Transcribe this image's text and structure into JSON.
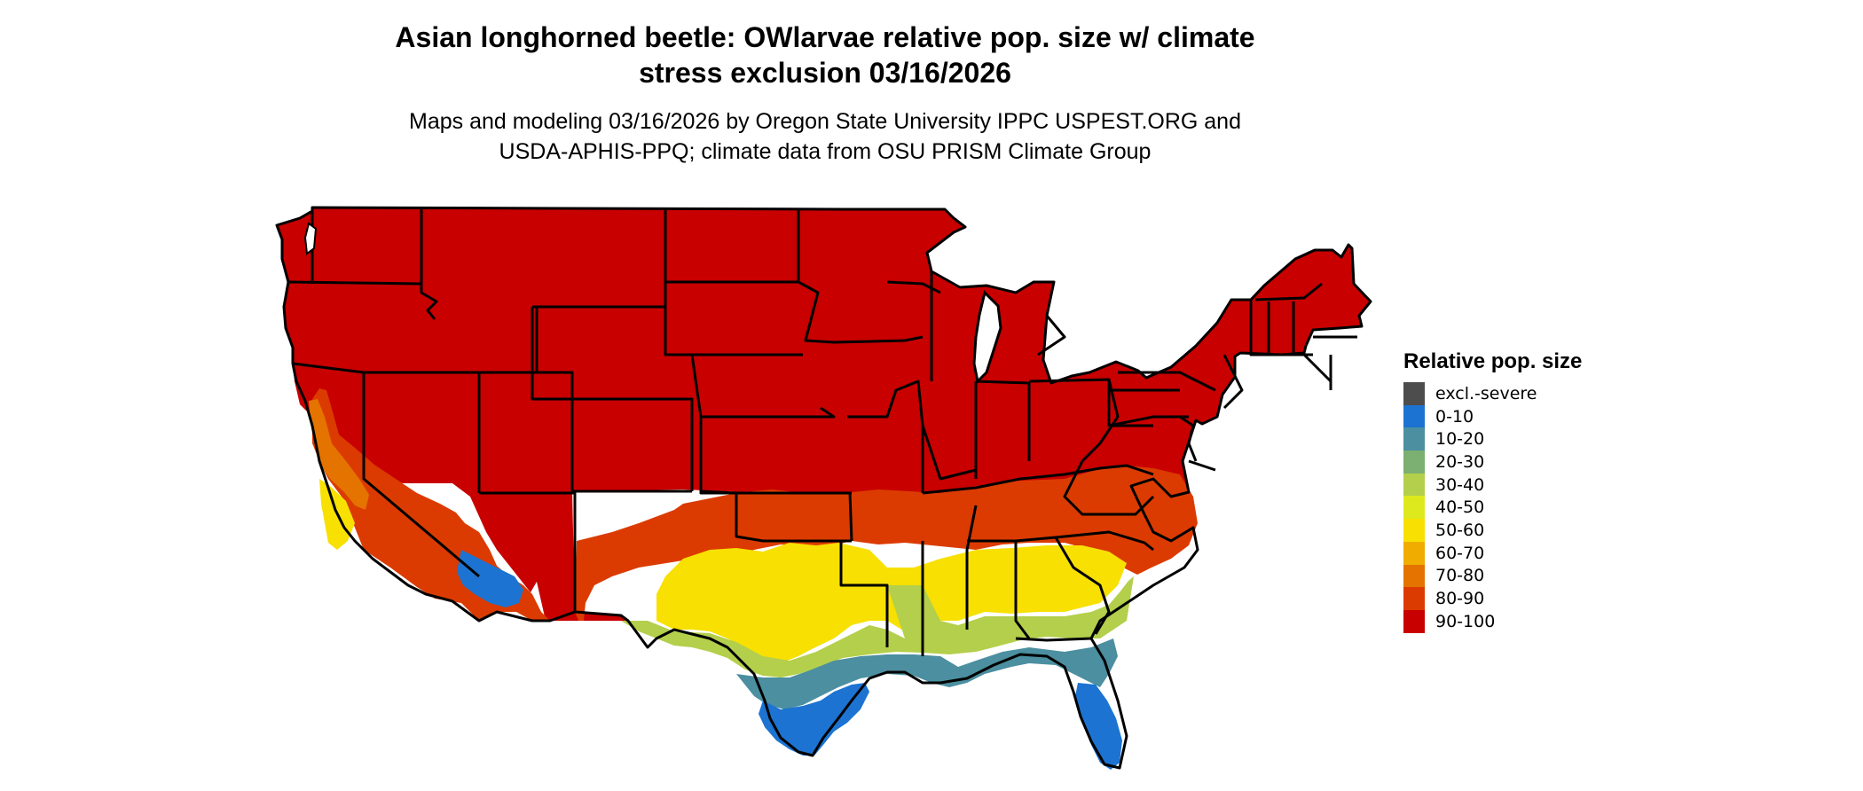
{
  "title_line1": "Asian longhorned beetle: OWlarvae relative pop. size w/ climate",
  "title_line2": "stress exclusion 03/16/2026",
  "subtitle_line1": "Maps and modeling 03/16/2026 by Oregon State University IPPC USPEST.ORG and",
  "subtitle_line2": "USDA-APHIS-PPQ; climate data from OSU PRISM Climate Group",
  "legend": {
    "title": "Relative pop. size",
    "items": [
      {
        "label": "excl.-severe",
        "color": "#4d4d4d"
      },
      {
        "label": "0-10",
        "color": "#1c73d1"
      },
      {
        "label": "10-20",
        "color": "#4b8fa0"
      },
      {
        "label": "20-30",
        "color": "#7bb072"
      },
      {
        "label": "30-40",
        "color": "#b3cf4b"
      },
      {
        "label": "40-50",
        "color": "#dde91c"
      },
      {
        "label": "50-60",
        "color": "#f7e002"
      },
      {
        "label": "60-70",
        "color": "#f0ad00"
      },
      {
        "label": "70-80",
        "color": "#e47300"
      },
      {
        "label": "80-90",
        "color": "#db3b00"
      },
      {
        "label": "90-100",
        "color": "#c80000"
      }
    ]
  }
}
